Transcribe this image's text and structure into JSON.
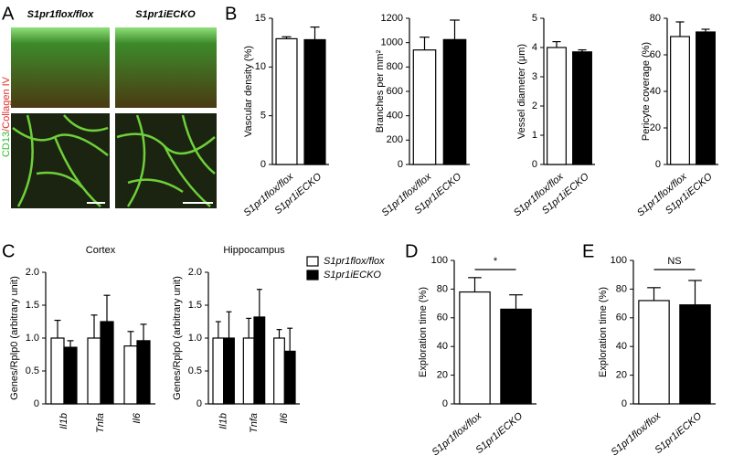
{
  "panel_labels": [
    "A",
    "B",
    "C",
    "D",
    "E"
  ],
  "image_panel": {
    "columns": [
      "S1pr1flox/flox",
      "S1pr1iECKO"
    ],
    "stain_labels": [
      "CD13",
      "/Collagen IV"
    ],
    "stain_colors": [
      "#2fbf2f",
      "#e0302a"
    ]
  },
  "chart_data": [
    {
      "type": "bar",
      "y_label": "Vascular density (%)",
      "categories": [
        "S1pr1flox/flox",
        "S1pr1iECKO"
      ],
      "values": [
        12.9,
        12.8
      ],
      "errors": [
        0.2,
        1.3
      ],
      "colors": [
        "#ffffff",
        "#000000"
      ],
      "ylim": [
        0,
        15
      ],
      "yticks": [
        0,
        5,
        10,
        15
      ]
    },
    {
      "type": "bar",
      "y_label": "Branches per mm²",
      "categories": [
        "S1pr1flox/flox",
        "S1pr1iECKO"
      ],
      "values": [
        940,
        1025
      ],
      "errors": [
        105,
        160
      ],
      "colors": [
        "#ffffff",
        "#000000"
      ],
      "ylim": [
        0,
        1200
      ],
      "yticks": [
        0,
        200,
        400,
        600,
        800,
        1000,
        1200
      ]
    },
    {
      "type": "bar",
      "y_label": "Vessel diameter (μm)",
      "categories": [
        "S1pr1flox/flox",
        "S1pr1iECKO"
      ],
      "values": [
        4.0,
        3.85
      ],
      "errors": [
        0.2,
        0.07
      ],
      "colors": [
        "#ffffff",
        "#000000"
      ],
      "ylim": [
        0,
        5
      ],
      "yticks": [
        0,
        1,
        2,
        3,
        4,
        5
      ]
    },
    {
      "type": "bar",
      "y_label": "Pericyte coverage (%)",
      "categories": [
        "S1pr1flox/flox",
        "S1pr1iECKO"
      ],
      "values": [
        70,
        72.5
      ],
      "errors": [
        8,
        1.5
      ],
      "colors": [
        "#ffffff",
        "#000000"
      ],
      "ylim": [
        0,
        80
      ],
      "yticks": [
        0,
        20,
        40,
        60,
        80
      ]
    },
    {
      "type": "grouped_bar",
      "title": "Cortex",
      "y_label": "Genes/Rplp0 (arbitrary unit)",
      "categories": [
        "Il1b",
        "Tnfa",
        "Il6"
      ],
      "series": [
        {
          "color": "#ffffff",
          "values": [
            1.0,
            1.0,
            0.88
          ],
          "errors": [
            0.27,
            0.35,
            0.22
          ]
        },
        {
          "color": "#000000",
          "values": [
            0.86,
            1.25,
            0.96
          ],
          "errors": [
            0.1,
            0.4,
            0.25
          ]
        }
      ],
      "ylim": [
        0,
        2
      ],
      "yticks": [
        0,
        0.5,
        {
          "value": 1,
          "label": "1.0"
        },
        1.5,
        {
          "value": 2,
          "label": "2.0"
        }
      ]
    },
    {
      "type": "grouped_bar",
      "title": "Hippocampus",
      "y_label": "Genes/Rplp0 (arbitrary unit)",
      "categories": [
        "Il1b",
        "Tnfa",
        "Il6"
      ],
      "series": [
        {
          "name": "S1pr1flox/flox",
          "color": "#ffffff",
          "values": [
            1.0,
            1.0,
            1.0
          ],
          "errors": [
            0.25,
            0.3,
            0.13
          ]
        },
        {
          "name": "S1pr1iECKO",
          "color": "#000000",
          "values": [
            1.0,
            1.32,
            0.8
          ],
          "errors": [
            0.4,
            0.42,
            0.35
          ]
        }
      ],
      "ylim": [
        0,
        2
      ],
      "yticks": [
        0,
        0.5,
        {
          "value": 1,
          "label": "1.0"
        },
        1.5,
        {
          "value": 2,
          "label": "2.0"
        }
      ],
      "legend": "right"
    },
    {
      "type": "bar",
      "y_label": "Exploration time (%)",
      "categories": [
        "S1pr1flox/flox",
        "S1pr1iECKO"
      ],
      "values": [
        78,
        66
      ],
      "errors": [
        10,
        10
      ],
      "colors": [
        "#ffffff",
        "#000000"
      ],
      "ylim": [
        0,
        100
      ],
      "yticks": [
        0,
        20,
        40,
        60,
        80,
        100
      ],
      "annotation": "*"
    },
    {
      "type": "bar",
      "y_label": "Exploration time (%)",
      "categories": [
        "S1pr1flox/flox",
        "S1pr1iECKO"
      ],
      "values": [
        72,
        69
      ],
      "errors": [
        9,
        17
      ],
      "colors": [
        "#ffffff",
        "#000000"
      ],
      "ylim": [
        0,
        100
      ],
      "yticks": [
        0,
        20,
        40,
        60,
        80,
        100
      ],
      "annotation": "NS"
    }
  ]
}
